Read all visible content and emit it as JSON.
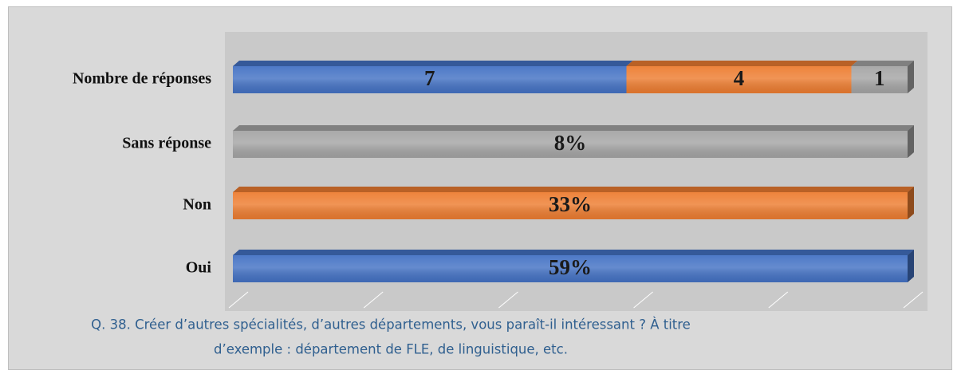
{
  "chart_data": {
    "type": "stacked-bar-100",
    "orientation": "horizontal",
    "categories": [
      "Oui",
      "Non",
      "Sans réponse",
      "Nombre de réponses"
    ],
    "series": [
      {
        "color": "#4472c4",
        "values": [
          59,
          null,
          null,
          7
        ],
        "value_labels": [
          "59%",
          null,
          null,
          "7"
        ]
      },
      {
        "color": "#ed7d31",
        "values": [
          null,
          33,
          null,
          4
        ],
        "value_labels": [
          null,
          "33%",
          null,
          "4"
        ]
      },
      {
        "color": "#a5a5a5",
        "values": [
          null,
          null,
          8,
          1
        ],
        "value_labels": [
          null,
          null,
          "8%",
          "1"
        ]
      }
    ],
    "xlim": [
      0,
      100
    ],
    "xticks": [
      0,
      20,
      40,
      60,
      80,
      100
    ],
    "grid": true,
    "caption": [
      "Q. 38. Créer d’autres spécialités, d’autres départements, vous paraît-il intéressant ? À titre",
      "d’exemple : département de FLE, de linguistique, etc."
    ]
  }
}
